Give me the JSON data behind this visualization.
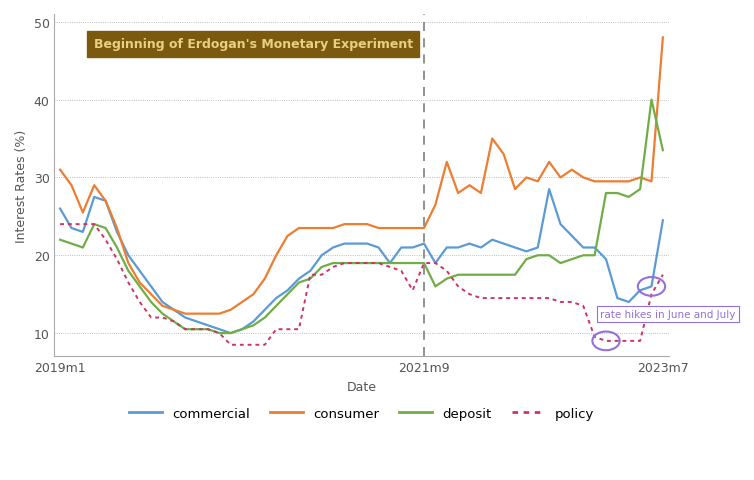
{
  "ylabel": "Interest Rates (%)",
  "xlabel": "Date",
  "annotation_text": "Beginning of Erdogan's Monetary Experiment",
  "annotation_box_color": "#7B5A10",
  "annotation_text_color": "#E8D080",
  "rate_hike_text": "rate hikes in June and July",
  "background_color": "#FFFFFF",
  "grid_color": "#AAAAAA",
  "commercial_color": "#5B9BD5",
  "consumer_color": "#ED7D31",
  "deposit_color": "#70AD47",
  "policy_color": "#CC3366",
  "ylim": [
    7,
    51
  ],
  "yticks": [
    10,
    20,
    30,
    40,
    50
  ],
  "vline_x": 32,
  "n_points": 54,
  "xtick_positions": [
    0,
    32,
    53
  ],
  "xtick_labels": [
    "2019m1",
    "2021m9",
    "2023m7"
  ],
  "commercial": [
    26.0,
    23.5,
    23.0,
    27.5,
    27.0,
    23.0,
    20.0,
    18.0,
    16.0,
    14.0,
    13.0,
    12.0,
    11.5,
    11.0,
    10.5,
    10.0,
    10.5,
    11.5,
    13.0,
    14.5,
    15.5,
    17.0,
    18.0,
    20.0,
    21.0,
    21.5,
    21.5,
    21.5,
    21.0,
    19.0,
    21.0,
    21.0,
    21.5,
    19.0,
    21.0,
    21.0,
    21.5,
    21.0,
    22.0,
    21.5,
    21.0,
    20.5,
    21.0,
    28.5,
    24.0,
    22.5,
    21.0,
    21.0,
    19.5,
    14.5,
    14.0,
    15.5,
    16.0,
    24.5
  ],
  "consumer": [
    31.0,
    29.0,
    25.5,
    29.0,
    27.0,
    23.5,
    19.0,
    16.5,
    15.0,
    13.5,
    13.0,
    12.5,
    12.5,
    12.5,
    12.5,
    13.0,
    14.0,
    15.0,
    17.0,
    20.0,
    22.5,
    23.5,
    23.5,
    23.5,
    23.5,
    24.0,
    24.0,
    24.0,
    23.5,
    23.5,
    23.5,
    23.5,
    23.5,
    26.5,
    32.0,
    28.0,
    29.0,
    28.0,
    35.0,
    33.0,
    28.5,
    30.0,
    29.5,
    32.0,
    30.0,
    31.0,
    30.0,
    29.5,
    29.5,
    29.5,
    29.5,
    30.0,
    29.5,
    48.0
  ],
  "deposit": [
    22.0,
    21.5,
    21.0,
    24.0,
    23.5,
    21.0,
    18.0,
    16.0,
    14.0,
    12.5,
    11.5,
    10.5,
    10.5,
    10.5,
    10.0,
    10.0,
    10.5,
    11.0,
    12.0,
    13.5,
    15.0,
    16.5,
    17.0,
    18.5,
    19.0,
    19.0,
    19.0,
    19.0,
    19.0,
    19.0,
    19.0,
    19.0,
    19.0,
    16.0,
    17.0,
    17.5,
    17.5,
    17.5,
    17.5,
    17.5,
    17.5,
    19.5,
    20.0,
    20.0,
    19.0,
    19.5,
    20.0,
    20.0,
    28.0,
    28.0,
    27.5,
    28.5,
    40.0,
    33.5
  ],
  "policy": [
    24.0,
    24.0,
    24.0,
    24.0,
    22.0,
    19.5,
    16.5,
    14.0,
    12.0,
    12.0,
    11.5,
    10.5,
    10.5,
    10.5,
    10.0,
    8.5,
    8.5,
    8.5,
    8.5,
    10.5,
    10.5,
    10.5,
    17.5,
    17.5,
    18.5,
    19.0,
    19.0,
    19.0,
    19.0,
    18.5,
    18.0,
    15.5,
    19.0,
    19.0,
    18.0,
    16.0,
    15.0,
    14.5,
    14.5,
    14.5,
    14.5,
    14.5,
    14.5,
    14.5,
    14.0,
    14.0,
    13.5,
    9.5,
    9.0,
    9.0,
    9.0,
    9.0,
    15.0,
    17.5
  ],
  "circle_policy_idx": 48,
  "circle_commercial_idx": 52
}
